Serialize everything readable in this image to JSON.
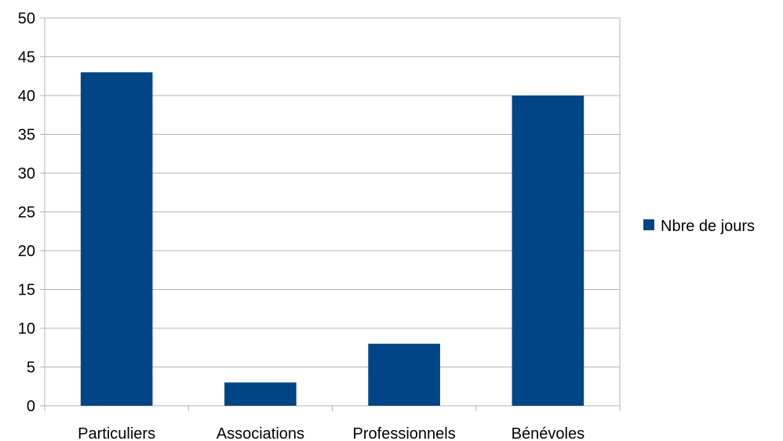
{
  "chart_data": {
    "type": "bar",
    "title": "",
    "xlabel": "",
    "ylabel": "",
    "categories": [
      "Particuliers",
      "Associations",
      "Professionnels",
      "Bénévoles"
    ],
    "series": [
      {
        "name": "Nbre de jours",
        "values": [
          43,
          3,
          8,
          40
        ],
        "color": "#004586"
      }
    ],
    "ylim": [
      0,
      50
    ],
    "yticks": [
      0,
      5,
      10,
      15,
      20,
      25,
      30,
      35,
      40,
      45,
      50
    ],
    "grid": true,
    "gridColor": "#b3b3b3",
    "legend": "right"
  }
}
